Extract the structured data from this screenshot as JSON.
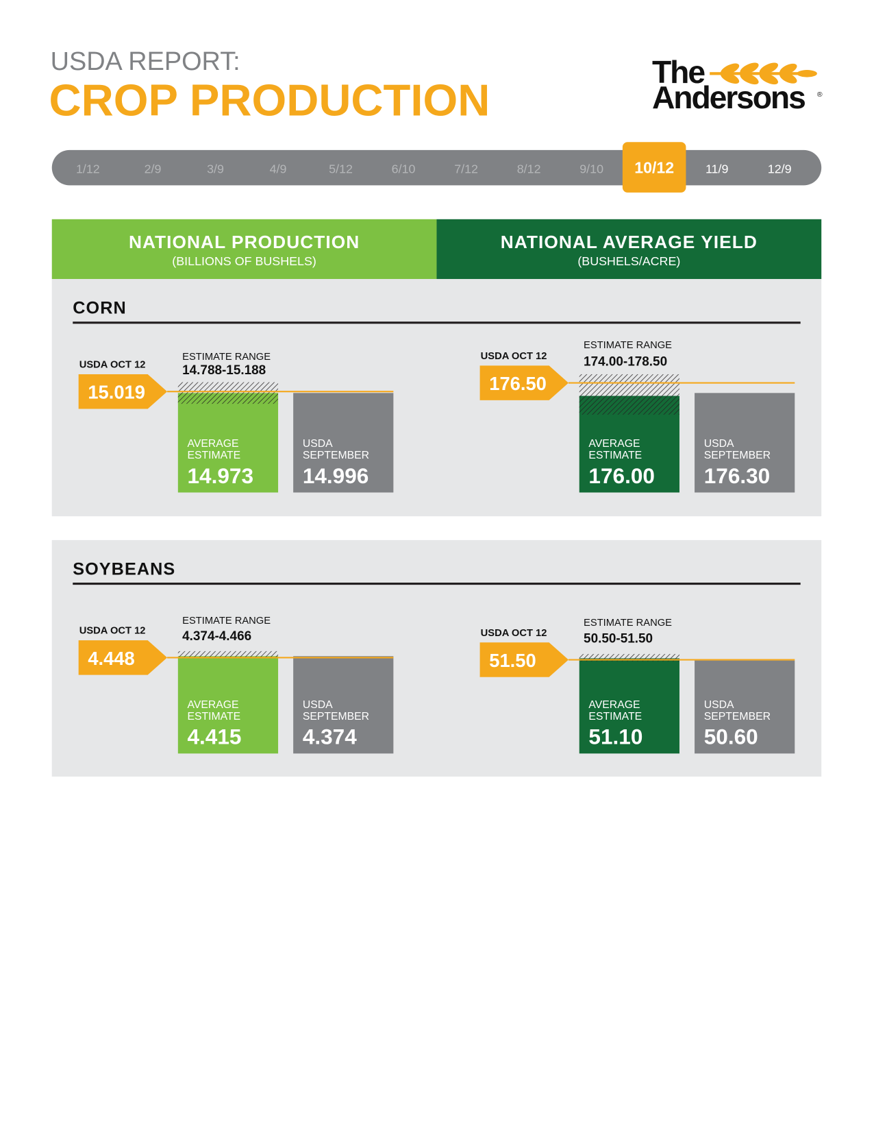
{
  "header": {
    "subtitle": "USDA REPORT:",
    "title": "CROP PRODUCTION",
    "logo": {
      "line1": "The",
      "line2": "Andersons",
      "mark": "®"
    }
  },
  "timeline": {
    "dates": [
      "1/12",
      "2/9",
      "3/9",
      "4/9",
      "5/12",
      "6/10",
      "7/12",
      "8/12",
      "9/10",
      "10/12",
      "11/9",
      "12/9"
    ],
    "active": 9
  },
  "columns": [
    {
      "title": "NATIONAL PRODUCTION",
      "unit": "(BILLIONS OF BUSHELS)"
    },
    {
      "title": "NATIONAL AVERAGE YIELD",
      "unit": "(BUSHELS/ACRE)"
    }
  ],
  "sections": [
    {
      "name": "CORN",
      "panels": [
        {
          "usda_label": "USDA OCT 12",
          "usda_value": "15.019",
          "range_label": "ESTIMATE RANGE",
          "range": "14.788-15.188",
          "avg_label": [
            "AVERAGE",
            "ESTIMATE"
          ],
          "avg_value": "14.973",
          "sept_label": [
            "USDA",
            "SEPTEMBER"
          ],
          "sept_value": "14.996"
        },
        {
          "usda_label": "USDA OCT 12",
          "usda_value": "176.50",
          "range_label": "ESTIMATE RANGE",
          "range": "174.00-178.50",
          "avg_label": [
            "AVERAGE",
            "ESTIMATE"
          ],
          "avg_value": "176.00",
          "sept_label": [
            "USDA",
            "SEPTEMBER"
          ],
          "sept_value": "176.30"
        }
      ]
    },
    {
      "name": "SOYBEANS",
      "panels": [
        {
          "usda_label": "USDA OCT 12",
          "usda_value": "4.448",
          "range_label": "ESTIMATE RANGE",
          "range": "4.374-4.466",
          "avg_label": [
            "AVERAGE",
            "ESTIMATE"
          ],
          "avg_value": "4.415",
          "sept_label": [
            "USDA",
            "SEPTEMBER"
          ],
          "sept_value": "4.374"
        },
        {
          "usda_label": "USDA OCT 12",
          "usda_value": "51.50",
          "range_label": "ESTIMATE RANGE",
          "range": "50.50-51.50",
          "avg_label": [
            "AVERAGE",
            "ESTIMATE"
          ],
          "avg_value": "51.10",
          "sept_label": [
            "USDA",
            "SEPTEMBER"
          ],
          "sept_value": "50.60"
        }
      ]
    }
  ]
}
